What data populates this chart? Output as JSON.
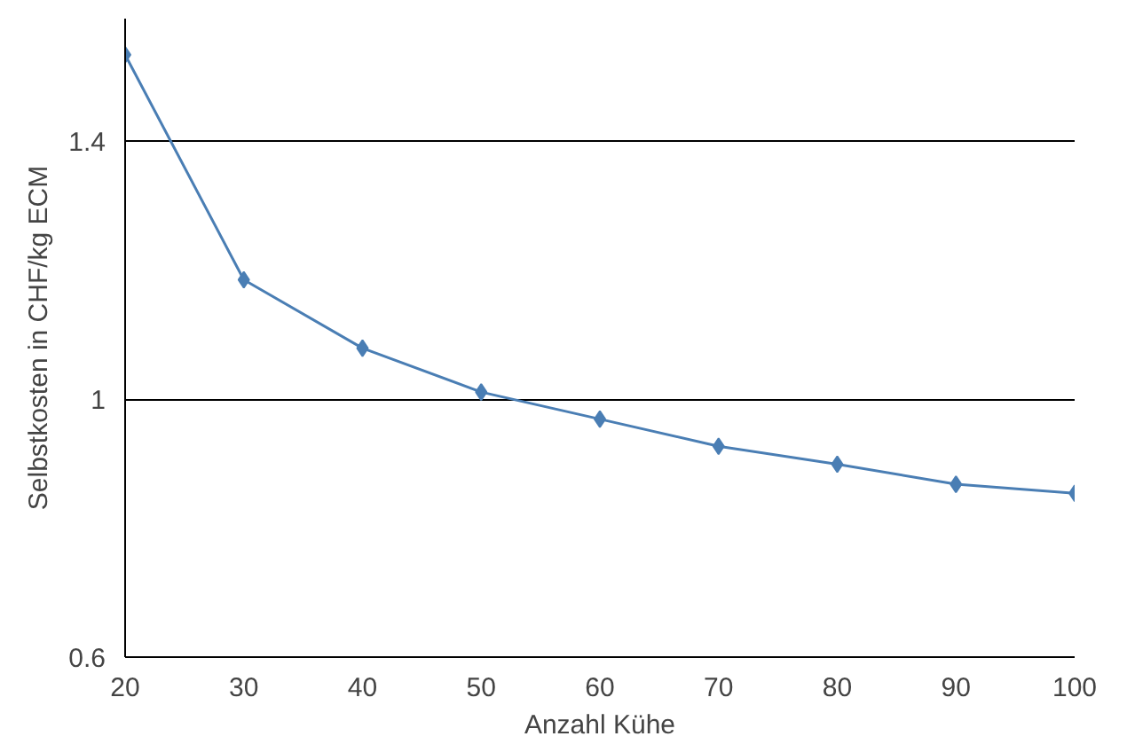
{
  "chart_data": {
    "type": "line",
    "xlabel": "Anzahl Kühe",
    "ylabel": "Selbstkosten in CHF/kg ECM",
    "x": [
      20,
      30,
      40,
      50,
      60,
      70,
      80,
      90,
      100
    ],
    "series": [
      {
        "color": "#4a7eb4",
        "values": [
          1.534,
          1.185,
          1.079,
          1.011,
          0.969,
          0.927,
          0.899,
          0.868,
          0.854
        ]
      }
    ],
    "xlim": [
      20,
      100
    ],
    "xticks": [
      20,
      30,
      40,
      50,
      60,
      70,
      80,
      90,
      100
    ],
    "ylim": [
      0.6,
      1.59
    ],
    "yticks": [
      0.6,
      1,
      1.4
    ],
    "grid": "y",
    "marker": "diamond",
    "line_style": "solid"
  }
}
